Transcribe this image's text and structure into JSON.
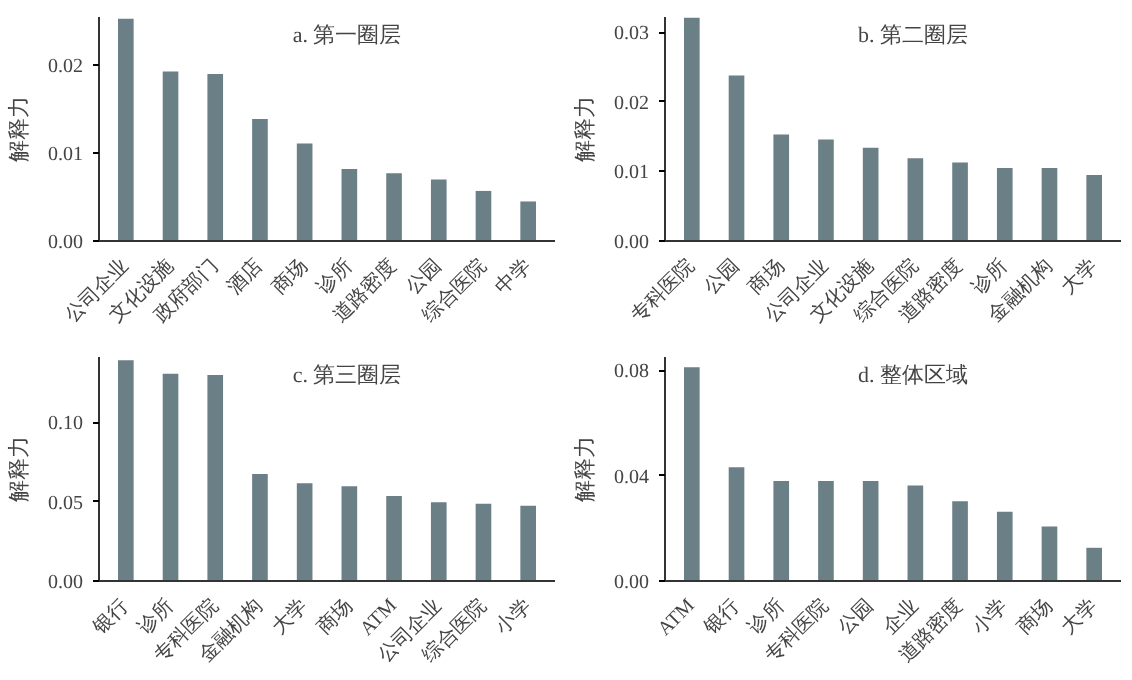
{
  "chart_data": [
    {
      "type": "bar",
      "title": "a. 第一圈层",
      "ylabel": "解释力",
      "categories": [
        "公司企业",
        "文化设施",
        "政府部门",
        "酒店",
        "商场",
        "诊所",
        "道路密度",
        "公园",
        "综合医院",
        "中学"
      ],
      "values": [
        0.0253,
        0.0193,
        0.019,
        0.0139,
        0.0111,
        0.0082,
        0.0077,
        0.007,
        0.0057,
        0.0045
      ],
      "color": "#6b7f87",
      "ylim": [
        0,
        0.0255
      ],
      "yticks": [
        {
          "value": 0,
          "label": "0.00"
        },
        {
          "value": 0.01,
          "label": "0.01"
        },
        {
          "value": 0.02,
          "label": "0.02"
        }
      ],
      "grid": false
    },
    {
      "type": "bar",
      "title": "b. 第二圈层",
      "ylabel": "解释力",
      "categories": [
        "专科医院",
        "公园",
        "商场",
        "公司企业",
        "文化设施",
        "综合医院",
        "道路密度",
        "诊所",
        "金融机构",
        "大学"
      ],
      "values": [
        0.0321,
        0.0238,
        0.0153,
        0.0146,
        0.0134,
        0.0119,
        0.0113,
        0.0105,
        0.0105,
        0.0095
      ],
      "color": "#6b7f87",
      "ylim": [
        0,
        0.0322
      ],
      "yticks": [
        {
          "value": 0,
          "label": "0.00"
        },
        {
          "value": 0.01,
          "label": "0.01"
        },
        {
          "value": 0.02,
          "label": "0.02"
        },
        {
          "value": 0.03,
          "label": "0.03"
        }
      ],
      "grid": false
    },
    {
      "type": "bar",
      "title": "c. 第三圈层",
      "ylabel": "解释力",
      "categories": [
        "银行",
        "诊所",
        "专科医院",
        "金融机构",
        "大学",
        "商场",
        "ATM",
        "公司企业",
        "综合医院",
        "小学"
      ],
      "values": [
        0.139,
        0.1305,
        0.1297,
        0.0673,
        0.0615,
        0.0597,
        0.0535,
        0.0496,
        0.0487,
        0.0473
      ],
      "color": "#6b7f87",
      "ylim": [
        0,
        0.141
      ],
      "yticks": [
        {
          "value": 0,
          "label": "0.00"
        },
        {
          "value": 0.05,
          "label": "0.05"
        },
        {
          "value": 0.1,
          "label": "0.10"
        }
      ],
      "grid": false
    },
    {
      "type": "bar",
      "title": "d. 整体区域",
      "ylabel": "解释力",
      "categories": [
        "ATM",
        "银行",
        "诊所",
        "专科医院",
        "公园",
        "企业",
        "道路密度",
        "小学",
        "商场",
        "大学"
      ],
      "values": [
        0.0811,
        0.0432,
        0.0379,
        0.0379,
        0.0379,
        0.0362,
        0.0303,
        0.0263,
        0.0207,
        0.0126
      ],
      "color": "#6b7f87",
      "ylim": [
        0,
        0.085
      ],
      "yticks": [
        {
          "value": 0,
          "label": "0.00"
        },
        {
          "value": 0.04,
          "label": "0.04"
        },
        {
          "value": 0.08,
          "label": "0.08"
        }
      ],
      "grid": false
    }
  ]
}
